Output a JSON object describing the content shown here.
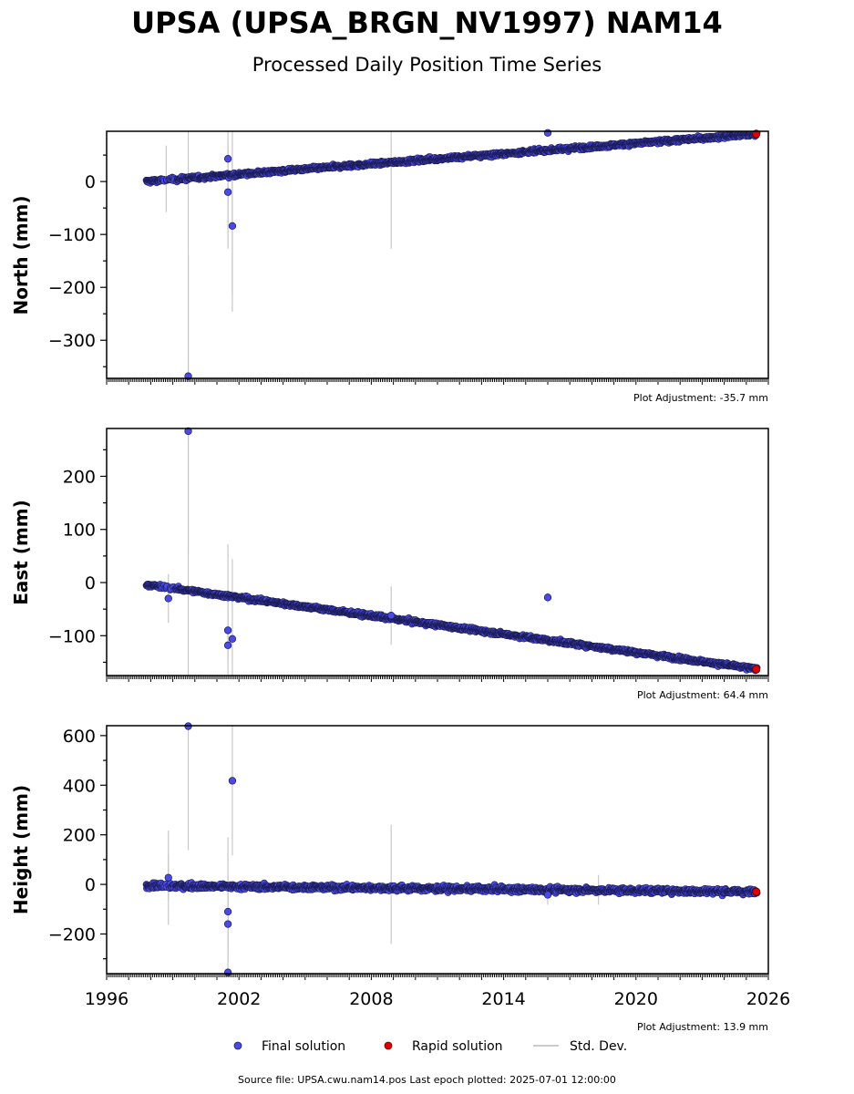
{
  "header": {
    "title": "UPSA (UPSA_BRGN_NV1997) NAM14",
    "subtitle": "Processed Daily Position Time Series"
  },
  "footer": {
    "source": "Source file: UPSA.cwu.nam14.pos  Last epoch plotted: 2025-07-01 12:00:00"
  },
  "legend": [
    {
      "label": "Final solution",
      "color": "#4a4ae6"
    },
    {
      "label": "Rapid solution",
      "color": "#e00000"
    },
    {
      "label": "Std. Dev.",
      "color": "#bbbbbb"
    }
  ],
  "chart_data": [
    {
      "type": "scatter",
      "ylabel": "North (mm)",
      "adjustment": "Plot Adjustment: -35.7 mm",
      "xlim": [
        1996.0,
        2026.0
      ],
      "ylim": [
        -372,
        95
      ],
      "yticks": [
        0,
        -100,
        -200,
        -300
      ],
      "trend": {
        "start": [
          1997.8,
          0
        ],
        "end": [
          2025.5,
          90
        ],
        "scatter": 3
      },
      "outliers": [
        {
          "x": 1999.7,
          "y": -368,
          "err": 460
        },
        {
          "x": 2001.5,
          "y": 43,
          "err": 60
        },
        {
          "x": 2001.5,
          "y": -20,
          "err": 110
        },
        {
          "x": 2001.7,
          "y": -84,
          "err": 260
        },
        {
          "x": 2016.0,
          "y": 92,
          "err": 10
        }
      ],
      "errorbars": [
        {
          "x": 1998.7,
          "y": 5,
          "err": 63
        },
        {
          "x": 1999.7,
          "y": 8,
          "err": 460
        },
        {
          "x": 2001.5,
          "y": 13,
          "err": 140
        },
        {
          "x": 2001.7,
          "y": 14,
          "err": 260
        },
        {
          "x": 2008.9,
          "y": 38,
          "err": 165
        }
      ],
      "rapid": {
        "x": 2025.45,
        "y": 90
      }
    },
    {
      "type": "scatter",
      "ylabel": "East (mm)",
      "adjustment": "Plot Adjustment: 64.4 mm",
      "xlim": [
        1996.0,
        2026.0
      ],
      "ylim": [
        -175,
        290
      ],
      "yticks": [
        200,
        100,
        0,
        -100
      ],
      "trend": {
        "start": [
          1997.8,
          -4
        ],
        "end": [
          2025.5,
          -163
        ],
        "scatter": 3
      },
      "outliers": [
        {
          "x": 1998.8,
          "y": -30,
          "err": 92
        },
        {
          "x": 1999.7,
          "y": 285,
          "err": 460
        },
        {
          "x": 2001.5,
          "y": -90,
          "err": 110
        },
        {
          "x": 2001.5,
          "y": -118,
          "err": 110
        },
        {
          "x": 2001.7,
          "y": -106,
          "err": 300
        },
        {
          "x": 2008.9,
          "y": -62,
          "err": 110
        },
        {
          "x": 2016.0,
          "y": -28,
          "err": 18
        }
      ],
      "errorbars": [
        {
          "x": 1999.7,
          "y": -20,
          "err": 460
        },
        {
          "x": 2001.5,
          "y": -28,
          "err": 100
        }
      ],
      "rapid": {
        "x": 2025.45,
        "y": -163
      }
    },
    {
      "type": "scatter",
      "ylabel": "Height (mm)",
      "adjustment": "Plot Adjustment: 13.9 mm",
      "xlim": [
        1996.0,
        2026.0
      ],
      "ylim": [
        -360,
        640
      ],
      "yticks": [
        600,
        400,
        200,
        0,
        -200
      ],
      "xticks": [
        1996,
        2002,
        2008,
        2014,
        2020,
        2026
      ],
      "trend": {
        "start": [
          1997.8,
          -5
        ],
        "end": [
          2025.5,
          -30
        ],
        "scatter": 9
      },
      "outliers": [
        {
          "x": 1998.8,
          "y": 27,
          "err": 190
        },
        {
          "x": 1999.7,
          "y": 638,
          "err": 1000
        },
        {
          "x": 2001.5,
          "y": -110,
          "err": 300
        },
        {
          "x": 2001.5,
          "y": -160,
          "err": 300
        },
        {
          "x": 2001.5,
          "y": -355,
          "err": 300
        },
        {
          "x": 2001.7,
          "y": 418,
          "err": 600
        },
        {
          "x": 2016.0,
          "y": -42,
          "err": 80
        }
      ],
      "errorbars": [
        {
          "x": 1998.8,
          "y": 27,
          "err": 190
        },
        {
          "x": 2001.5,
          "y": -20,
          "err": 210
        },
        {
          "x": 2008.9,
          "y": 0,
          "err": 240
        },
        {
          "x": 2018.3,
          "y": -22,
          "err": 60
        }
      ],
      "rapid": {
        "x": 2025.45,
        "y": -30
      }
    }
  ]
}
